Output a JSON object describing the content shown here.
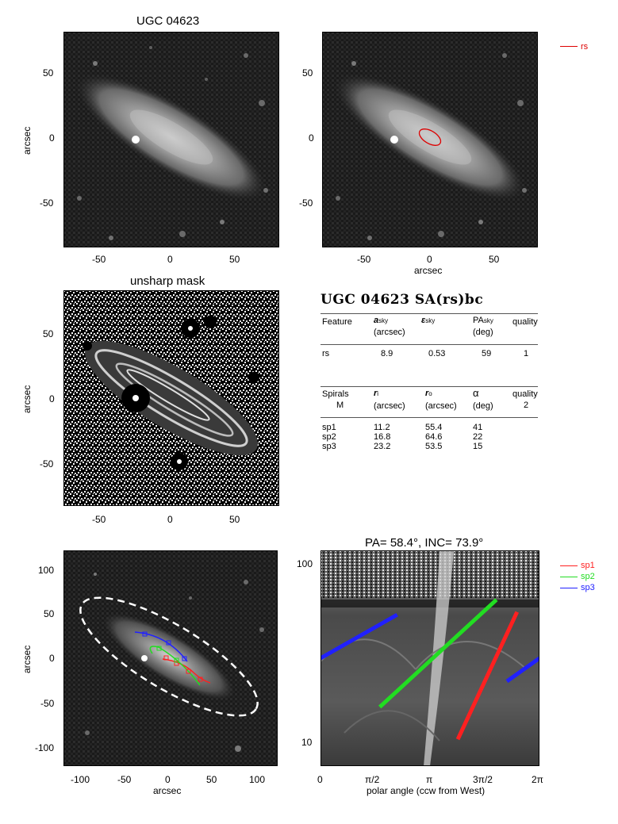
{
  "panel1": {
    "title": "UGC 04623",
    "ylabel": "arcsec",
    "xticks": [
      "-50",
      "0",
      "50"
    ],
    "yticks": [
      "50",
      "0",
      "-50"
    ]
  },
  "panel2": {
    "xlabel": "arcsec",
    "xticks": [
      "-50",
      "0",
      "50"
    ],
    "yticks": [
      "50",
      "0",
      "-50"
    ],
    "legend": {
      "label": "rs",
      "color": "#dd0000"
    }
  },
  "panel3": {
    "title": "unsharp mask",
    "ylabel": "arcsec",
    "xticks": [
      "-50",
      "0",
      "50"
    ],
    "yticks": [
      "50",
      "0",
      "-50"
    ]
  },
  "table": {
    "title": "UGC 04623  SA(rs)bc",
    "header1": {
      "feature": "Feature",
      "a": "a",
      "a_sub": "sky",
      "a_unit": "(arcsec)",
      "eps": "ε",
      "eps_sub": "sky",
      "pa": "PA",
      "pa_sub": "sky",
      "pa_unit": "(deg)",
      "quality": "quality"
    },
    "row1": {
      "feature": "rs",
      "a": "8.9",
      "eps": "0.53",
      "pa": "59",
      "quality": "1"
    },
    "header2": {
      "spirals": "Spirals",
      "m": "M",
      "ri": "r",
      "ri_sub": "i",
      "ri_unit": "(arcsec)",
      "ro": "r",
      "ro_sub": "o",
      "ro_unit": "(arcsec)",
      "alpha": "α",
      "alpha_unit": "(deg)",
      "quality": "quality",
      "quality_val": "2"
    },
    "spirals": [
      {
        "name": "sp1",
        "ri": "11.2",
        "ro": "55.4",
        "alpha": "41"
      },
      {
        "name": "sp2",
        "ri": "16.8",
        "ro": "64.6",
        "alpha": "22"
      },
      {
        "name": "sp3",
        "ri": "23.2",
        "ro": "53.5",
        "alpha": "15"
      }
    ]
  },
  "panel5": {
    "xlabel": "arcsec",
    "ylabel": "arcsec",
    "xticks": [
      "-100",
      "-50",
      "0",
      "50",
      "100"
    ],
    "yticks": [
      "100",
      "50",
      "0",
      "-50",
      "-100"
    ]
  },
  "panel6": {
    "title": "PA=  58.4°, INC=  73.9°",
    "xlabel": "polar angle (ccw from West)",
    "xticks": [
      "0",
      "π/2",
      "π",
      "3π/2",
      "2π"
    ],
    "yticks": [
      "100",
      "10"
    ],
    "legend": [
      {
        "label": "sp1",
        "color": "#ff2020"
      },
      {
        "label": "sp2",
        "color": "#22dd22"
      },
      {
        "label": "sp3",
        "color": "#2020ff"
      }
    ]
  },
  "chart_data": [
    {
      "type": "scatter",
      "title": "PA=  58.4°, INC=  73.9°",
      "xlabel": "polar angle (ccw from West)",
      "ylabel": "",
      "yscale": "log",
      "xlim": [
        0,
        6.2832
      ],
      "ylim": [
        8,
        120
      ],
      "series": [
        {
          "name": "sp1",
          "x": [
            3.94,
            5.64
          ],
          "y": [
            11.2,
            55.4
          ]
        },
        {
          "name": "sp2",
          "x": [
            1.7,
            5.05
          ],
          "y": [
            16.8,
            64.6
          ]
        },
        {
          "name": "sp3",
          "x": [
            0.0,
            2.2
          ],
          "y": [
            31.0,
            53.5
          ]
        },
        {
          "name": "sp3",
          "x": [
            5.35,
            6.2832
          ],
          "y": [
            23.2,
            31.0
          ]
        }
      ]
    }
  ]
}
